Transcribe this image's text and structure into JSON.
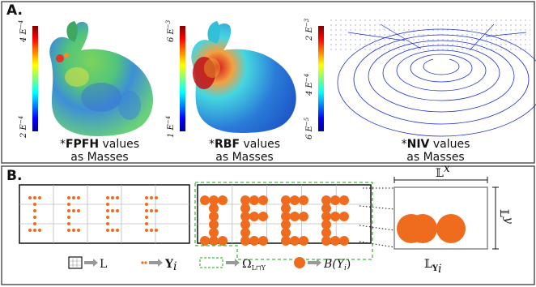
{
  "panel_a": {
    "label": "A.",
    "items": [
      {
        "prefix": "*",
        "bold": "FPFH",
        "rest": " values",
        "line2": "as Masses",
        "scale_top": "4 E",
        "scale_top_exp": "−4",
        "scale_bot": "2 E",
        "scale_bot_exp": "−4"
      },
      {
        "prefix": "*",
        "bold": "RBF",
        "rest": " values",
        "line2": "as Masses",
        "scale_top": "6 E",
        "scale_top_exp": "−3",
        "scale_bot": "1 E",
        "scale_bot_exp": "−4"
      },
      {
        "prefix": "*",
        "bold": "NIV",
        "rest": " values",
        "line2": "as Masses",
        "scale_top": "2 E",
        "scale_top_exp": "−3",
        "scale_mid": "4 E",
        "scale_mid_exp": "−4",
        "scale_bot": "6 E",
        "scale_bot_exp": "−5"
      }
    ]
  },
  "panel_b": {
    "label": "B.",
    "lx": "x",
    "ly": "y",
    "lyi": "Y",
    "lyi_sub": "i",
    "legend": {
      "grid_sym": "L",
      "points_sym": "Y",
      "points_sub": "i",
      "omega": "Ω",
      "omega_sub": "L⊓Y",
      "ball": "B(Y",
      "ball_sub": "i",
      "ball_close": ")"
    }
  },
  "colors": {
    "orange": "#ef6c1f",
    "green_dash": "#3dbb3d",
    "arrow": "#999999",
    "frame": "#555555"
  }
}
